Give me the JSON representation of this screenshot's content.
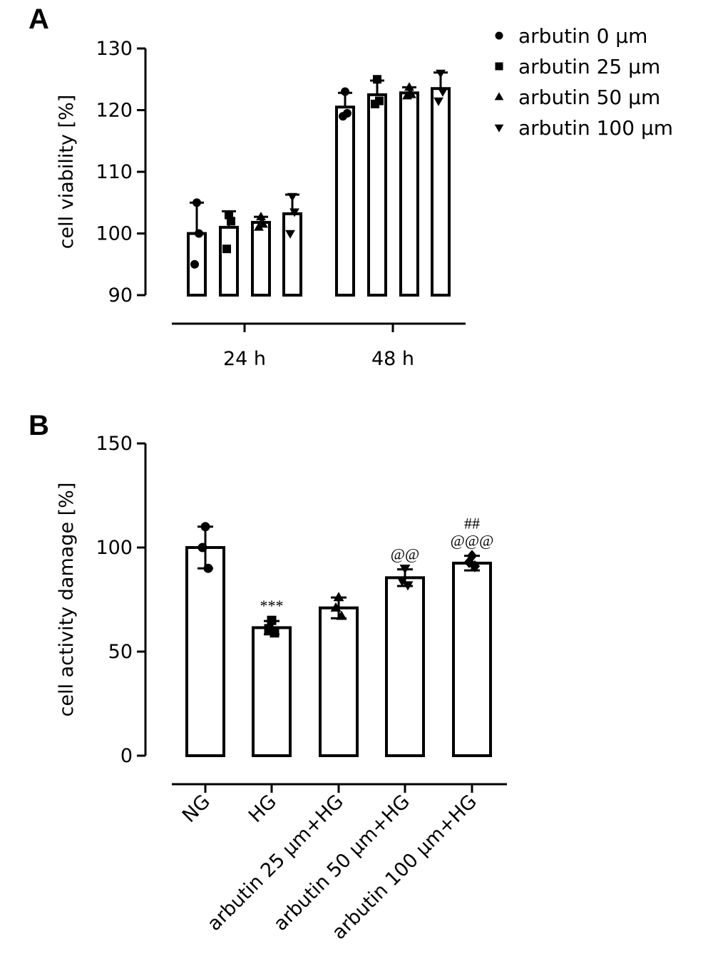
{
  "chart_data": [
    {
      "panel": "A",
      "type": "bar",
      "ylabel": "cell viability [%]",
      "ylim": [
        90,
        130
      ],
      "yticks": [
        90,
        100,
        110,
        120,
        130
      ],
      "groups": [
        "24 h",
        "48 h"
      ],
      "legend": {
        "placement": "top-right",
        "entries": [
          {
            "label": "arbutin 0 μm",
            "marker": "circle"
          },
          {
            "label": "arbutin 25 μm",
            "marker": "square"
          },
          {
            "label": "arbutin 50 μm",
            "marker": "triangle-up"
          },
          {
            "label": "arbutin 100 μm",
            "marker": "triangle-down"
          }
        ]
      },
      "series": [
        {
          "name": "arbutin 0 μm",
          "marker": "circle",
          "values": [
            100.0,
            120.5
          ],
          "errors": [
            5.0,
            2.3
          ],
          "points": [
            [
              105,
              100,
              95
            ],
            [
              123,
              119.5,
              119
            ]
          ]
        },
        {
          "name": "arbutin 25 μm",
          "marker": "square",
          "values": [
            101.0,
            122.5
          ],
          "errors": [
            2.6,
            2.3
          ],
          "points": [
            [
              103,
              102,
              97.5
            ],
            [
              125,
              121.5,
              121
            ]
          ]
        },
        {
          "name": "arbutin 50 μm",
          "marker": "triangle-up",
          "values": [
            101.8,
            122.8
          ],
          "errors": [
            0.9,
            0.9
          ],
          "points": [
            [
              102.7,
              101.5,
              101.0
            ],
            [
              123.7,
              122.5,
              122.3
            ]
          ]
        },
        {
          "name": "arbutin 100 μm",
          "marker": "triangle-down",
          "values": [
            103.2,
            123.5
          ],
          "errors": [
            3.1,
            2.6
          ],
          "points": [
            [
              106,
              103.5,
              100
            ],
            [
              126,
              123.0,
              121.5
            ]
          ]
        }
      ]
    },
    {
      "panel": "B",
      "type": "bar",
      "ylabel": "cell activity damage [%]",
      "ylim": [
        0,
        150
      ],
      "yticks": [
        0,
        50,
        100,
        150
      ],
      "categories": [
        "NG",
        "HG",
        "arbutin 25 μm+HG",
        "arbutin 50 μm+HG",
        "arbutin 100 μm+HG"
      ],
      "markers": [
        "circle",
        "square",
        "triangle-up",
        "triangle-down",
        "diamond"
      ],
      "values": [
        100.0,
        61.5,
        71.0,
        85.5,
        92.5
      ],
      "errors": [
        10.0,
        3.2,
        5.0,
        4.0,
        3.5
      ],
      "points": [
        [
          110,
          100,
          90
        ],
        [
          65,
          61,
          59
        ],
        [
          76,
          71,
          67
        ],
        [
          90,
          84,
          82
        ],
        [
          96,
          93,
          91
        ]
      ],
      "annotations": [
        {
          "category": "HG",
          "lines": [
            "***"
          ]
        },
        {
          "category": "arbutin 50 μm+HG",
          "lines": [
            "@@"
          ]
        },
        {
          "category": "arbutin 100 μm+HG",
          "lines": [
            "##",
            "@@@"
          ]
        }
      ]
    }
  ],
  "labels": {
    "panel_a": "A",
    "panel_b": "B"
  }
}
